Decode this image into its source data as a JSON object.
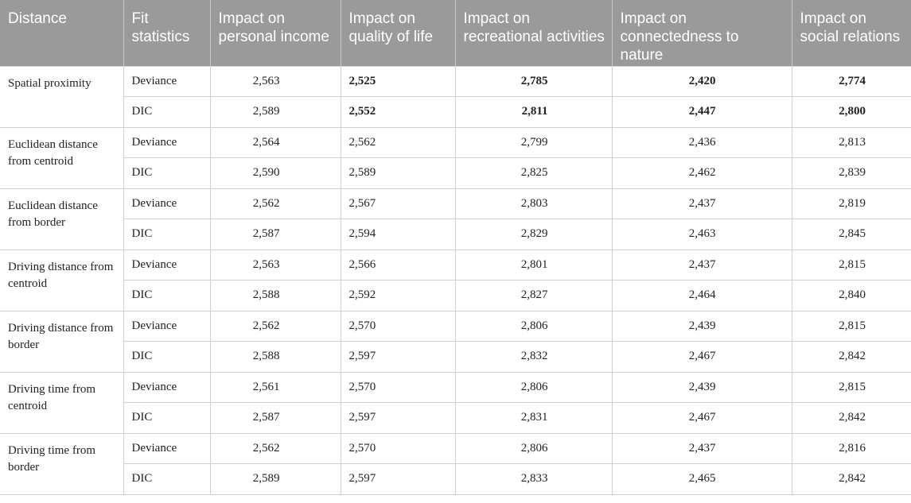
{
  "headers": [
    "Distance",
    "Fit statistics",
    "Impact on personal income",
    "Impact on quality of life",
    "Impact on recreational activities",
    "Impact on connectedness to nature",
    "Impact on social relations"
  ],
  "rows": [
    {
      "distance": "Spatial proximity",
      "stats": [
        {
          "fit": "Deviance",
          "values": [
            "2,563",
            "2,525",
            "2,785",
            "2,420",
            "2,774"
          ],
          "bold": [
            false,
            true,
            true,
            true,
            true
          ]
        },
        {
          "fit": "DIC",
          "values": [
            "2,589",
            "2,552",
            "2,811",
            "2,447",
            "2,800"
          ],
          "bold": [
            false,
            true,
            true,
            true,
            true
          ]
        }
      ]
    },
    {
      "distance": "Euclidean distance from centroid",
      "stats": [
        {
          "fit": "Deviance",
          "values": [
            "2,564",
            "2,562",
            "2,799",
            "2,436",
            "2,813"
          ],
          "bold": [
            false,
            false,
            false,
            false,
            false
          ]
        },
        {
          "fit": "DIC",
          "values": [
            "2,590",
            "2,589",
            "2,825",
            "2,462",
            "2,839"
          ],
          "bold": [
            false,
            false,
            false,
            false,
            false
          ]
        }
      ]
    },
    {
      "distance": "Euclidean distance from border",
      "stats": [
        {
          "fit": "Deviance",
          "values": [
            "2,562",
            "2,567",
            "2,803",
            "2,437",
            "2,819"
          ],
          "bold": [
            false,
            false,
            false,
            false,
            false
          ]
        },
        {
          "fit": "DIC",
          "values": [
            "2,587",
            "2,594",
            "2,829",
            "2,463",
            "2,845"
          ],
          "bold": [
            false,
            false,
            false,
            false,
            false
          ]
        }
      ]
    },
    {
      "distance": "Driving distance from centroid",
      "stats": [
        {
          "fit": "Deviance",
          "values": [
            "2,563",
            "2,566",
            "2,801",
            "2,437",
            "2,815"
          ],
          "bold": [
            false,
            false,
            false,
            false,
            false
          ]
        },
        {
          "fit": "DIC",
          "values": [
            "2,588",
            "2,592",
            "2,827",
            "2,464",
            "2,840"
          ],
          "bold": [
            false,
            false,
            false,
            false,
            false
          ]
        }
      ]
    },
    {
      "distance": "Driving distance from border",
      "stats": [
        {
          "fit": "Deviance",
          "values": [
            "2,562",
            "2,570",
            "2,806",
            "2,439",
            "2,815"
          ],
          "bold": [
            false,
            false,
            false,
            false,
            false
          ]
        },
        {
          "fit": "DIC",
          "values": [
            "2,588",
            "2,597",
            "2,832",
            "2,467",
            "2,842"
          ],
          "bold": [
            false,
            false,
            false,
            false,
            false
          ]
        }
      ]
    },
    {
      "distance": "Driving time from centroid",
      "stats": [
        {
          "fit": "Deviance",
          "values": [
            "2,561",
            "2,570",
            "2,806",
            "2,439",
            "2,815"
          ],
          "bold": [
            false,
            false,
            false,
            false,
            false
          ]
        },
        {
          "fit": "DIC",
          "values": [
            "2,587",
            "2,597",
            "2,831",
            "2,467",
            "2,842"
          ],
          "bold": [
            false,
            false,
            false,
            false,
            false
          ]
        }
      ]
    },
    {
      "distance": "Driving time from border",
      "stats": [
        {
          "fit": "Deviance",
          "values": [
            "2,562",
            "2,570",
            "2,806",
            "2,437",
            "2,816"
          ],
          "bold": [
            false,
            false,
            false,
            false,
            false
          ]
        },
        {
          "fit": "DIC",
          "values": [
            "2,589",
            "2,597",
            "2,833",
            "2,465",
            "2,842"
          ],
          "bold": [
            false,
            false,
            false,
            false,
            false
          ]
        }
      ]
    }
  ]
}
